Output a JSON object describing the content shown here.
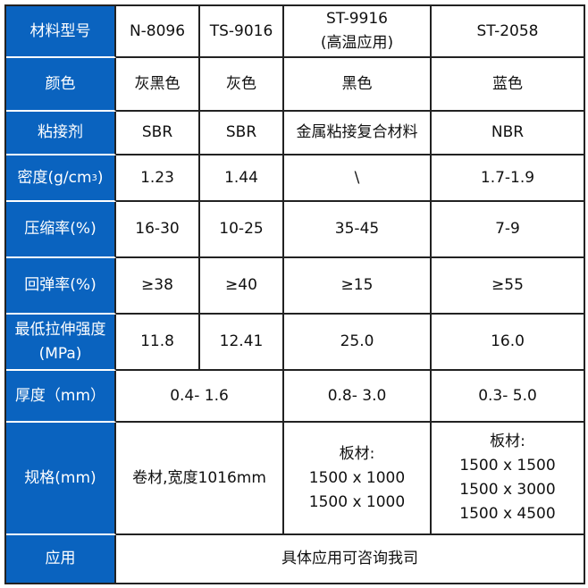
{
  "colors": {
    "header_bg": "#0a63bf",
    "border": "#222222"
  },
  "header": {
    "label": "材料型号",
    "models": [
      "N-8096",
      "TS-9016",
      "ST-9916",
      "ST-2058"
    ],
    "model_note": "(高温应用)"
  },
  "rows": {
    "color": {
      "label": "颜色",
      "values": [
        "灰黑色",
        "灰色",
        "黑色",
        "蓝色"
      ]
    },
    "adhesive": {
      "label": "粘接剂",
      "values": [
        "SBR",
        "SBR",
        "金属粘接复合材料",
        "NBR"
      ]
    },
    "density": {
      "label": "密度(g/cm",
      "label_sup": "3",
      "label_end": ")",
      "values": [
        "1.23",
        "1.44",
        "\\",
        "1.7-1.9"
      ]
    },
    "compression": {
      "label": "压缩率(%)",
      "values": [
        "16-30",
        "10-25",
        "35-45",
        "7-9"
      ]
    },
    "rebound": {
      "label": "回弹率(%)",
      "values": [
        "≥38",
        "≥40",
        "≥15",
        "≥55"
      ]
    },
    "tensile": {
      "label": "最低拉伸强度",
      "label2": "(MPa)",
      "values": [
        "11.8",
        "12.41",
        "25.0",
        "16.0"
      ]
    },
    "thickness": {
      "label": "厚度（mm）",
      "values": [
        "0.4- 1.6",
        "0.8- 3.0",
        "0.3- 5.0"
      ]
    },
    "spec": {
      "label": "规格(mm)",
      "roll": "卷材,宽度1016mm",
      "sheet_label": "板材:",
      "st9916": [
        "1500 x 1000",
        "1500 x 1000"
      ],
      "st2058": [
        "1500 x 1500",
        "1500 x 3000",
        "1500 x 4500"
      ]
    },
    "application": {
      "label": "应用",
      "value": "具体应用可咨询我司"
    }
  }
}
